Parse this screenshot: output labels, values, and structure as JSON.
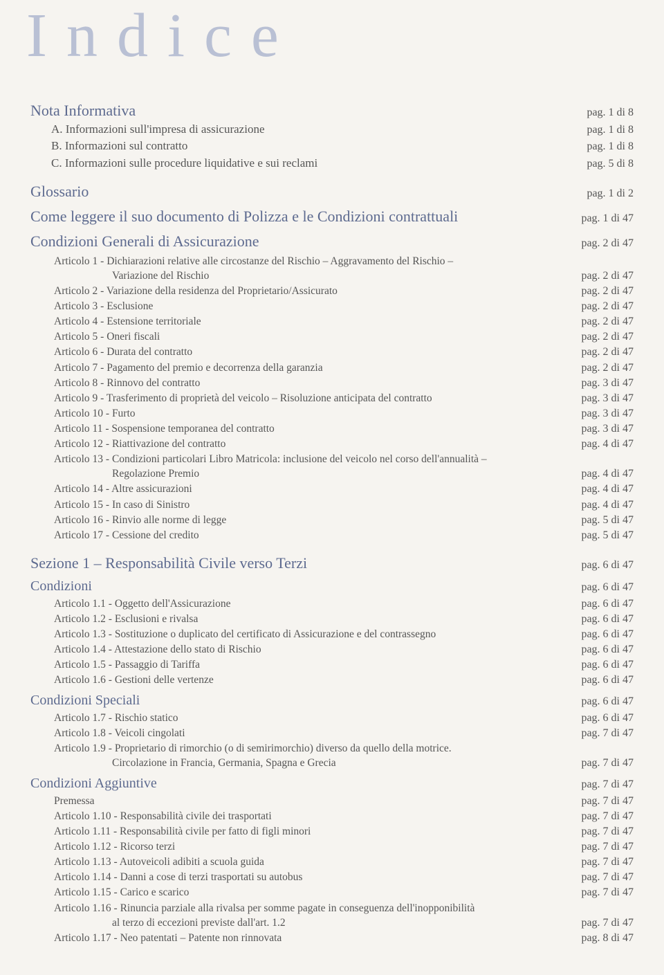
{
  "title": "Indice",
  "pag": "pag.",
  "top": [
    {
      "label": "Nota Informativa",
      "page": "1 di 8",
      "cls": "section"
    },
    {
      "label": "A. Informazioni sull'impresa di assicurazione",
      "page": "1 di 8",
      "cls": "sub-a"
    },
    {
      "label": "B. Informazioni sul contratto",
      "page": "1 di 8",
      "cls": "sub-a"
    },
    {
      "label": "C. Informazioni sulle procedure liquidative e sui reclami",
      "page": "5 di 8",
      "cls": "sub-a"
    }
  ],
  "mids": [
    {
      "label": "Glossario",
      "page": "1 di 2",
      "cls": "section"
    },
    {
      "label": "Come leggere il suo documento di Polizza e le Condizioni contrattuali",
      "page": "1 di 47",
      "cls": "section"
    },
    {
      "label": "Condizioni Generali di Assicurazione",
      "page": "2 di 47",
      "cls": "section"
    }
  ],
  "condGen": [
    {
      "label": "Articolo 1   - Dichiarazioni relative alle circostanze del Rischio – Aggravamento del Rischio –",
      "page": "",
      "cls": "sub-b"
    },
    {
      "label": "Variazione del Rischio",
      "page": "2 di 47",
      "cls": "sub-b2"
    },
    {
      "label": "Articolo 2   - Variazione della residenza del Proprietario/Assicurato",
      "page": "2 di 47",
      "cls": "sub-b"
    },
    {
      "label": "Articolo 3   - Esclusione",
      "page": "2 di 47",
      "cls": "sub-b"
    },
    {
      "label": "Articolo 4   - Estensione territoriale",
      "page": "2 di 47",
      "cls": "sub-b"
    },
    {
      "label": "Articolo 5   - Oneri fiscali",
      "page": "2 di 47",
      "cls": "sub-b"
    },
    {
      "label": "Articolo 6   - Durata del contratto",
      "page": "2 di 47",
      "cls": "sub-b"
    },
    {
      "label": "Articolo 7   - Pagamento del premio e decorrenza della garanzia",
      "page": "2 di 47",
      "cls": "sub-b"
    },
    {
      "label": "Articolo 8   - Rinnovo del contratto",
      "page": "3 di 47",
      "cls": "sub-b"
    },
    {
      "label": "Articolo 9   - Trasferimento di proprietà del veicolo – Risoluzione anticipata del contratto",
      "page": "3 di 47",
      "cls": "sub-b"
    },
    {
      "label": "Articolo 10 - Furto",
      "page": "3 di 47",
      "cls": "sub-b"
    },
    {
      "label": "Articolo 11 - Sospensione temporanea del contratto",
      "page": "3 di 47",
      "cls": "sub-b"
    },
    {
      "label": "Articolo 12 - Riattivazione del contratto",
      "page": "4 di 47",
      "cls": "sub-b"
    },
    {
      "label": "Articolo 13 - Condizioni particolari Libro Matricola: inclusione del veicolo nel corso dell'annualità –",
      "page": "",
      "cls": "sub-b"
    },
    {
      "label": "Regolazione Premio",
      "page": "4 di 47",
      "cls": "sub-b2"
    },
    {
      "label": "Articolo 14 - Altre assicurazioni",
      "page": "4 di 47",
      "cls": "sub-b"
    },
    {
      "label": "Articolo 15 - In caso di Sinistro",
      "page": "4 di 47",
      "cls": "sub-b"
    },
    {
      "label": "Articolo 16 - Rinvio alle norme di legge",
      "page": "5 di 47",
      "cls": "sub-b"
    },
    {
      "label": "Articolo 17 - Cessione del credito",
      "page": "5 di 47",
      "cls": "sub-b"
    }
  ],
  "sez1": {
    "label": "Sezione 1 – Responsabilità Civile verso Terzi",
    "page": "6 di 47",
    "cls": "section"
  },
  "cond": {
    "label": "Condizioni",
    "page": "6 di 47",
    "cls": "section-sm"
  },
  "condItems": [
    {
      "label": "Articolo 1.1 - Oggetto dell'Assicurazione",
      "page": "6 di 47",
      "cls": "sub-b"
    },
    {
      "label": "Articolo 1.2 - Esclusioni e rivalsa",
      "page": "6 di 47",
      "cls": "sub-b"
    },
    {
      "label": "Articolo 1.3 - Sostituzione o duplicato del certificato di Assicurazione e del contrassegno",
      "page": "6 di 47",
      "cls": "sub-b"
    },
    {
      "label": "Articolo 1.4 - Attestazione dello stato di Rischio",
      "page": "6 di 47",
      "cls": "sub-b"
    },
    {
      "label": "Articolo 1.5 - Passaggio di Tariffa",
      "page": "6 di 47",
      "cls": "sub-b"
    },
    {
      "label": "Articolo 1.6 - Gestioni delle vertenze",
      "page": "6 di 47",
      "cls": "sub-b"
    }
  ],
  "condSpec": {
    "label": "Condizioni Speciali",
    "page": "6 di 47",
    "cls": "section-sm"
  },
  "condSpecItems": [
    {
      "label": "Articolo 1.7 - Rischio statico",
      "page": "6 di 47",
      "cls": "sub-b"
    },
    {
      "label": "Articolo 1.8 - Veicoli cingolati",
      "page": "7 di 47",
      "cls": "sub-b"
    },
    {
      "label": "Articolo 1.9 - Proprietario di rimorchio (o di semirimorchio) diverso da quello della motrice.",
      "page": "",
      "cls": "sub-b"
    },
    {
      "label": "Circolazione in Francia, Germania, Spagna e Grecia",
      "page": "7 di 47",
      "cls": "sub-b2"
    }
  ],
  "condAgg": {
    "label": "Condizioni Aggiuntive",
    "page": "7 di 47",
    "cls": "section-sm"
  },
  "condAggItems": [
    {
      "label": "Premessa",
      "page": "7 di 47",
      "cls": "sub-b"
    },
    {
      "label": "Articolo 1.10 - Responsabilità civile dei trasportati",
      "page": "7 di 47",
      "cls": "sub-b"
    },
    {
      "label": "Articolo 1.11 - Responsabilità civile per fatto di figli minori",
      "page": "7 di 47",
      "cls": "sub-b"
    },
    {
      "label": "Articolo 1.12 - Ricorso terzi",
      "page": "7 di 47",
      "cls": "sub-b"
    },
    {
      "label": "Articolo 1.13 - Autoveicoli adibiti a scuola guida",
      "page": "7 di 47",
      "cls": "sub-b"
    },
    {
      "label": "Articolo 1.14 - Danni a cose di terzi trasportati su autobus",
      "page": "7 di 47",
      "cls": "sub-b"
    },
    {
      "label": "Articolo 1.15 - Carico e scarico",
      "page": "7 di 47",
      "cls": "sub-b"
    },
    {
      "label": "Articolo 1.16 - Rinuncia parziale alla rivalsa per somme pagate in conseguenza dell'inopponibilità",
      "page": "",
      "cls": "sub-b"
    },
    {
      "label": "al terzo di eccezioni previste dall'art. 1.2",
      "page": "7 di 47",
      "cls": "sub-b2"
    },
    {
      "label": "Articolo 1.17 - Neo patentati – Patente non rinnovata",
      "page": "8 di 47",
      "cls": "sub-b"
    }
  ]
}
